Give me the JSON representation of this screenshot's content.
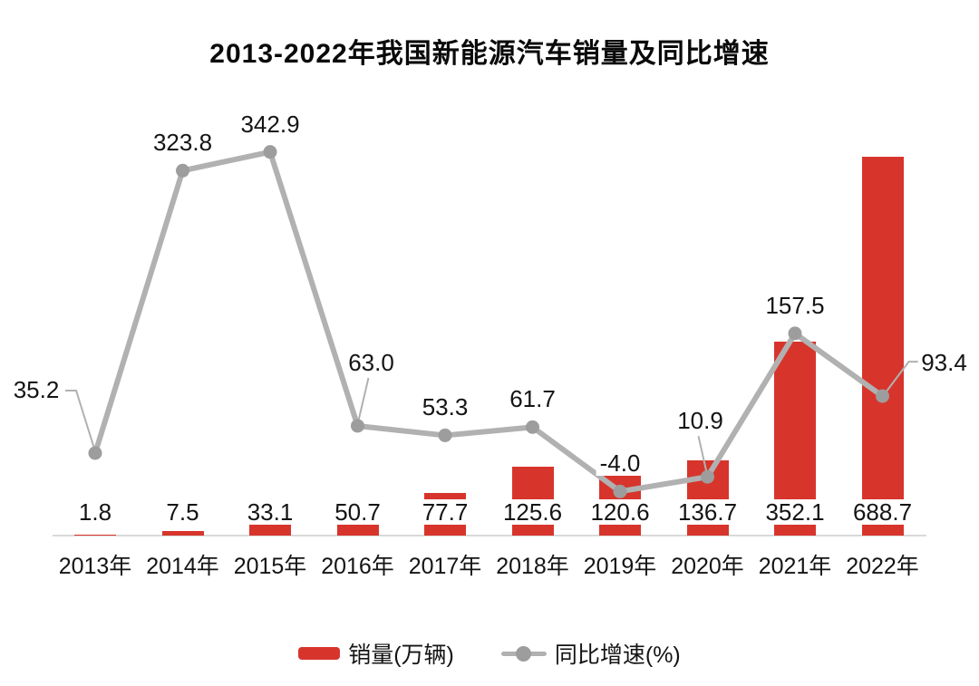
{
  "title": "2013-2022年我国新能源汽车销量及同比增速",
  "chart_data": {
    "type": "bar",
    "subtype": "bar+line combo, dual implicit axes, no gridlines, no visible y-axes",
    "title": "2013-2022年我国新能源汽车销量及同比增速",
    "categories": [
      "2013年",
      "2014年",
      "2015年",
      "2016年",
      "2017年",
      "2018年",
      "2019年",
      "2020年",
      "2021年",
      "2022年"
    ],
    "series": [
      {
        "name": "销量(万辆)",
        "type": "bar",
        "color": "#d7352c",
        "values": [
          1.8,
          7.5,
          33.1,
          50.7,
          77.7,
          125.6,
          120.6,
          136.7,
          352.1,
          688.7
        ]
      },
      {
        "name": "同比增速(%)",
        "type": "line",
        "color": "#b1b1b1",
        "marker_color": "#9d9d9d",
        "values": [
          35.2,
          323.8,
          342.9,
          63.0,
          53.3,
          61.7,
          -4.0,
          10.9,
          157.5,
          93.4
        ]
      }
    ],
    "legend_position": "bottom",
    "grid": false,
    "axis_line_color": "#d9d9d9",
    "data_labels": true,
    "label_placements": [
      "left-leader",
      "above",
      "above",
      "above-right-leader",
      "above",
      "above",
      "above",
      "above-left-leader",
      "above",
      "right-leader"
    ]
  }
}
